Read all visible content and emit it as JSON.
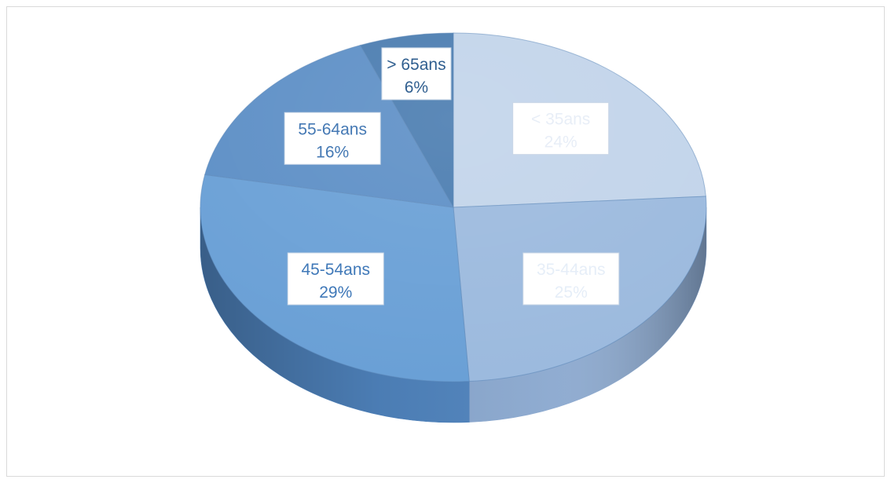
{
  "chart_data": {
    "type": "pie",
    "title": "",
    "style": "3d",
    "slices": [
      {
        "label": "< 35ans",
        "percent_label": "24%",
        "value": 24,
        "color": "#c2d4ea",
        "side_color": "#a9bfdc",
        "text_color": "#e8eef7"
      },
      {
        "label": "35-44ans",
        "percent_label": "25%",
        "value": 25,
        "color": "#9cbade",
        "side_color": "#8aa8cf",
        "text_color": "#e6eef8"
      },
      {
        "label": "45-54ans",
        "percent_label": "29%",
        "value": 29,
        "color": "#6aa0d6",
        "side_color": "#4f83bd",
        "text_color": "#3f78b8"
      },
      {
        "label": "55-64ans",
        "percent_label": "16%",
        "value": 16,
        "color": "#5d8fc6",
        "side_color": "#4677ae",
        "text_color": "#4579b4"
      },
      {
        "label": "> 65ans",
        "percent_label": "6%",
        "value": 6,
        "color": "#4a7cb0",
        "side_color": "#3a6796",
        "text_color": "#2f5e8f"
      }
    ]
  }
}
